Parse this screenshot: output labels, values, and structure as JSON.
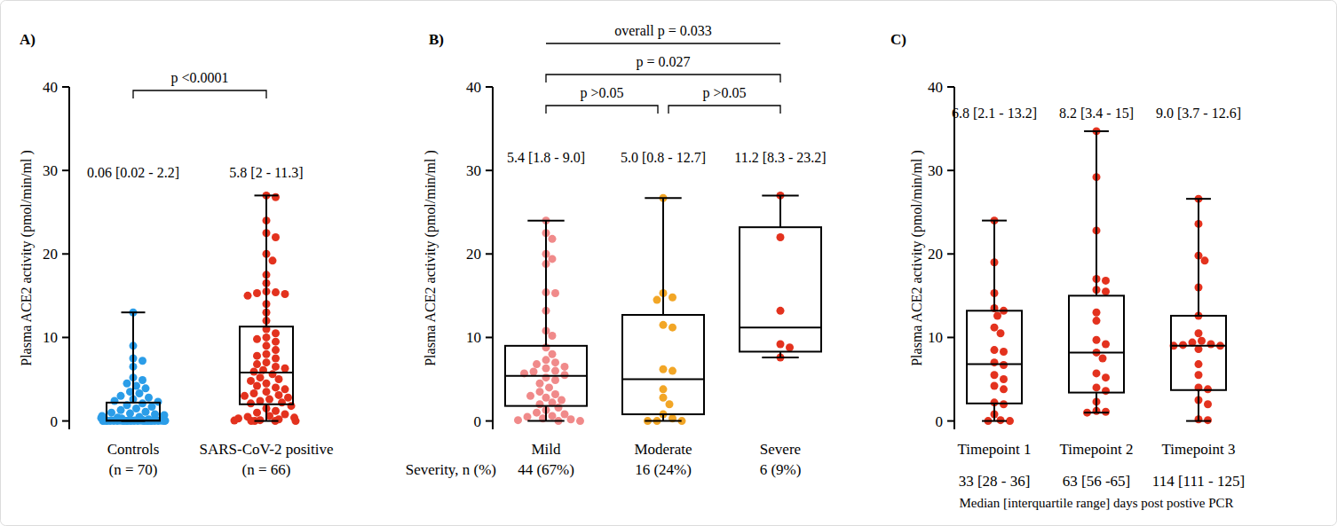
{
  "chart_data": [
    {
      "type": "box",
      "panel_label": "A)",
      "y_label": "Plasma ACE2 activity (pmol/min/ml )",
      "categories": [
        "Controls",
        "SARS-CoV-2 positive"
      ],
      "category_sublabels": [
        "(n = 70)",
        "(n = 66)"
      ],
      "ylim": [
        -1,
        40
      ],
      "yticks": [
        0,
        10,
        20,
        30,
        40
      ],
      "series": [
        {
          "color": "#2b9de8",
          "min": 0,
          "q1": 0.02,
          "median": 0.06,
          "q3": 2.2,
          "max": 13,
          "summary_label": "0.06 [0.02 - 2.2]",
          "points": [
            13,
            9,
            7.5,
            7.2,
            6.5,
            5.2,
            4.9,
            4.5,
            4.2,
            3.9,
            3.5,
            3.3,
            3.0,
            2.8,
            2.6,
            2.4,
            2.3,
            2.1,
            1.9,
            1.7,
            1.5,
            1.3,
            1.1,
            1.0,
            0.9,
            0.8,
            0.7,
            0.6,
            0.5,
            0.4,
            0.35,
            0.3,
            0.2,
            0.15,
            0.1,
            0.06,
            0.06,
            0.05,
            0.05,
            0.05,
            0.05,
            0.05,
            0.04,
            0.04,
            0.04,
            0.04,
            0.04,
            0.04,
            0.03,
            0.03,
            0.03,
            0.03,
            0.03,
            0.03,
            0.02,
            0.02,
            0.02,
            0.02,
            0.02,
            0.02,
            0.02,
            0.02,
            0.01,
            0.01,
            0.01,
            0.01,
            0.01,
            0,
            0,
            0
          ]
        },
        {
          "color": "#e3321e",
          "min": 0,
          "q1": 2,
          "median": 5.8,
          "q3": 11.3,
          "max": 27,
          "summary_label": "5.8 [2 - 11.3]",
          "points": [
            27,
            26.8,
            24,
            22.5,
            22,
            20,
            19.2,
            17.5,
            16.5,
            15.5,
            15.4,
            15.3,
            15.2,
            15,
            14,
            13,
            12,
            11,
            10.5,
            10,
            9.8,
            9.5,
            9,
            8.5,
            8,
            7.8,
            7.5,
            7,
            6.8,
            6.5,
            6.3,
            6.1,
            5.9,
            5.6,
            5.2,
            5,
            4.8,
            4.5,
            4.2,
            4,
            3.8,
            3.5,
            3.3,
            3.1,
            3,
            2.8,
            2.6,
            2.4,
            2.2,
            2.1,
            1.8,
            1.5,
            1.2,
            1,
            0.8,
            0.6,
            0.5,
            0.4,
            0.3,
            0.2,
            0.1,
            0.05,
            0,
            0,
            0,
            0
          ]
        }
      ],
      "comparisons": [
        {
          "from": 0,
          "to": 1,
          "label": "p <0.0001",
          "line_style": "bracket"
        }
      ]
    },
    {
      "type": "box",
      "panel_label": "B)",
      "y_label": "Plasma ACE2 activity (pmol/min/ml )",
      "categories": [
        "Mild",
        "Moderate",
        "Severe"
      ],
      "sublabel_title": "Severity, n (%)",
      "category_sublabels": [
        "44 (67%)",
        "16 (24%)",
        "6 (9%)"
      ],
      "ylim": [
        -1,
        40
      ],
      "yticks": [
        0,
        10,
        20,
        30,
        40
      ],
      "series": [
        {
          "color": "#f08a8a",
          "min": 0,
          "q1": 1.8,
          "median": 5.4,
          "q3": 9.0,
          "max": 24,
          "summary_label": "5.4 [1.8 - 9.0]",
          "points": [
            24,
            22.5,
            21.8,
            20,
            19.4,
            18.8,
            15.4,
            15.3,
            13.2,
            10.8,
            10.2,
            8.8,
            8.0,
            7.3,
            7.0,
            6.8,
            6.5,
            6.3,
            6.0,
            5.9,
            5.7,
            5.5,
            5.2,
            4.9,
            4.5,
            4.0,
            3.5,
            3.2,
            3.0,
            2.8,
            2.5,
            2.2,
            2.0,
            1.6,
            1.3,
            1.0,
            0.8,
            0.6,
            0.5,
            0.3,
            0.2,
            0.1,
            0,
            0
          ]
        },
        {
          "color": "#f2a626",
          "min": 0,
          "q1": 0.8,
          "median": 5.0,
          "q3": 12.7,
          "max": 26.7,
          "summary_label": "5.0 [0.8 - 12.7]",
          "points": [
            26.7,
            15.3,
            14.8,
            14.5,
            11.5,
            11.2,
            6.2,
            6.0,
            3.8,
            2.8,
            2.0,
            0.8,
            0.3,
            0,
            0,
            0
          ]
        },
        {
          "color": "#e3321e",
          "min": 7.6,
          "q1": 8.3,
          "median": 11.2,
          "q3": 23.2,
          "max": 27,
          "summary_label": "11.2 [8.3 - 23.2]",
          "points": [
            27,
            22,
            13.2,
            9.2,
            8.8,
            7.6
          ]
        }
      ],
      "comparisons": [
        {
          "from": 0,
          "to": 1,
          "label": "p >0.05",
          "line_style": "bracket"
        },
        {
          "from": 1,
          "to": 2,
          "label": "p >0.05",
          "line_style": "bracket"
        },
        {
          "from": 0,
          "to": 2,
          "label": "p = 0.027",
          "line_style": "bracket"
        },
        {
          "from": 0,
          "to": 2,
          "label": "overall p = 0.033",
          "line_style": "plain"
        }
      ]
    },
    {
      "type": "box",
      "panel_label": "C)",
      "y_label": "Plasma ACE2 activity (pmol/min/ml )",
      "x_label": "Median [interquartile range] days post postive PCR",
      "categories": [
        "Timepoint 1",
        "Timepoint 2",
        "Timepoint 3"
      ],
      "category_sublabels": [
        "33 [28 - 36]",
        "63 [56 -65]",
        "114 [111 - 125]"
      ],
      "ylim": [
        -1,
        40
      ],
      "yticks": [
        0,
        10,
        20,
        30,
        40
      ],
      "series": [
        {
          "color": "#e3321e",
          "min": 0,
          "q1": 2.1,
          "median": 6.8,
          "q3": 13.2,
          "max": 24,
          "summary_label": "6.8 [2.1 - 13.2]",
          "points": [
            24,
            19,
            15.3,
            13.5,
            13.2,
            12.6,
            11.2,
            10.5,
            8.5,
            8.3,
            7.0,
            6.7,
            5.5,
            5.0,
            4.2,
            3.8,
            2.2,
            2.0,
            0.8,
            0.1,
            0,
            0
          ]
        },
        {
          "color": "#e3321e",
          "min": 1,
          "q1": 3.4,
          "median": 8.2,
          "q3": 15,
          "max": 34.7,
          "summary_label": "8.2 [3.4 - 15]",
          "points": [
            34.7,
            29.2,
            22.8,
            17,
            16.8,
            15.7,
            15.5,
            13.0,
            12.0,
            9.7,
            9.2,
            8.2,
            7.5,
            5.7,
            5.2,
            4.0,
            3.6,
            2.3,
            1.2,
            1.1,
            1.0
          ]
        },
        {
          "color": "#e3321e",
          "min": 0,
          "q1": 3.7,
          "median": 9.0,
          "q3": 12.6,
          "max": 26.6,
          "summary_label": "9.0 [3.7 - 12.6]",
          "points": [
            26.6,
            23.6,
            19.8,
            19.2,
            16.0,
            12.6,
            10.5,
            9.6,
            9.4,
            9.2,
            9.1,
            9.0,
            9.0,
            8.6,
            6.8,
            5.5,
            4.0,
            3.8,
            2.5,
            2.0,
            0.2,
            0.1
          ]
        }
      ]
    }
  ]
}
